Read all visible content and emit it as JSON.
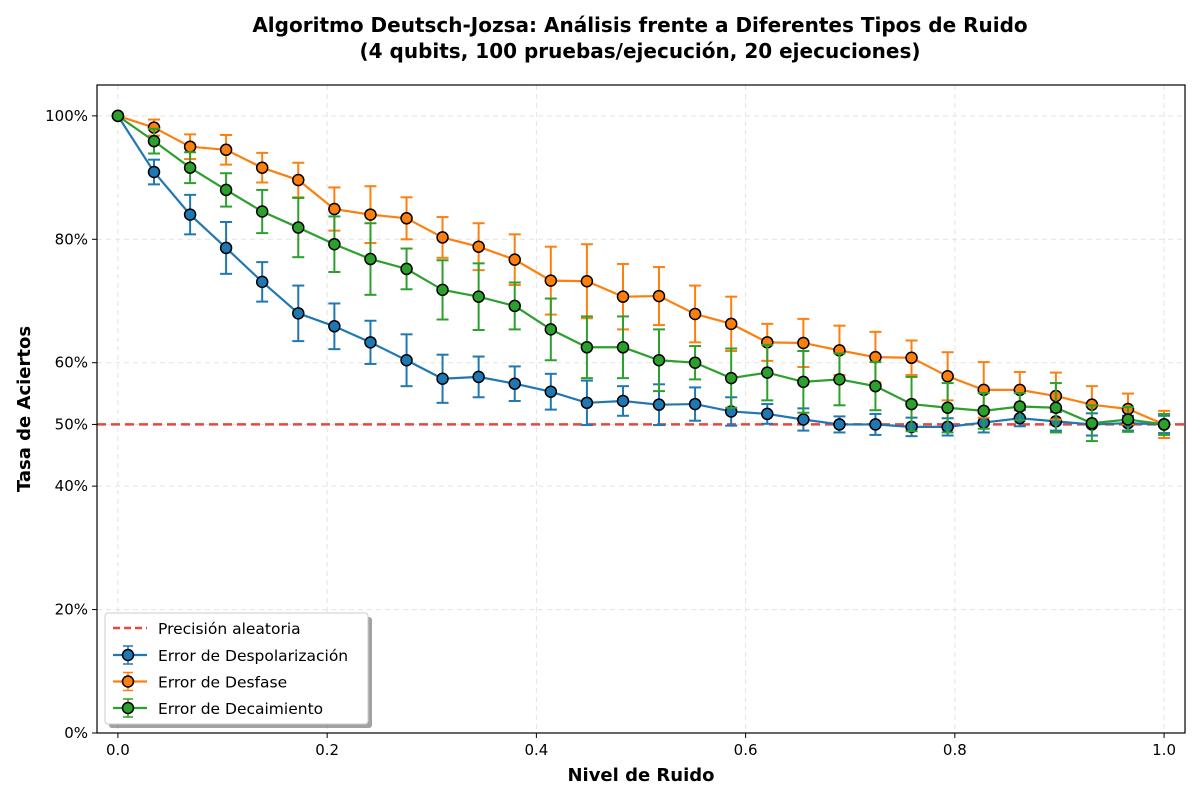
{
  "chart_data": {
    "type": "line",
    "title": "Algoritmo Deutsch-Jozsa: Análisis frente a Diferentes Tipos de Ruido",
    "subtitle": "(4 qubits, 100 pruebas/ejecución, 20 ejecuciones)",
    "xlabel": "Nivel de Ruido",
    "ylabel": "Tasa de Aciertos",
    "xlim": [
      -0.02,
      1.02
    ],
    "ylim": [
      0,
      1.05
    ],
    "x_ticks": [
      0.0,
      0.2,
      0.4,
      0.6,
      0.8,
      1.0
    ],
    "x_tick_labels": [
      "0.0",
      "0.2",
      "0.4",
      "0.6",
      "0.8",
      "1.0"
    ],
    "y_ticks": [
      0,
      0.2,
      0.4,
      0.5,
      0.6,
      0.8,
      1.0
    ],
    "y_tick_labels": [
      "0%",
      "20%",
      "40%",
      "50%",
      "60%",
      "80%",
      "100%"
    ],
    "grid": true,
    "legend_position": "lower-left",
    "reference_line": {
      "name": "Precisión aleatoria",
      "y": 0.5,
      "color": "#e8473f",
      "style": "dashed"
    },
    "x": [
      0.0,
      0.0345,
      0.069,
      0.1034,
      0.1379,
      0.1724,
      0.2069,
      0.2414,
      0.2759,
      0.3103,
      0.3448,
      0.3793,
      0.4138,
      0.4483,
      0.4828,
      0.5172,
      0.5517,
      0.5862,
      0.6207,
      0.6552,
      0.6897,
      0.7241,
      0.7586,
      0.7931,
      0.8276,
      0.8621,
      0.8966,
      0.931,
      0.9655,
      1.0
    ],
    "series": [
      {
        "name": "Error de Despolarización",
        "color": "#1f77b4",
        "values": [
          1.0,
          0.909,
          0.84,
          0.786,
          0.731,
          0.68,
          0.659,
          0.633,
          0.604,
          0.574,
          0.577,
          0.566,
          0.553,
          0.535,
          0.538,
          0.532,
          0.533,
          0.521,
          0.517,
          0.508,
          0.5,
          0.5,
          0.496,
          0.496,
          0.503,
          0.51,
          0.505,
          0.5,
          0.502,
          0.5
        ],
        "errors": [
          0.0,
          0.02,
          0.032,
          0.042,
          0.032,
          0.045,
          0.037,
          0.035,
          0.042,
          0.039,
          0.033,
          0.028,
          0.029,
          0.036,
          0.024,
          0.033,
          0.027,
          0.023,
          0.016,
          0.018,
          0.013,
          0.017,
          0.015,
          0.014,
          0.016,
          0.013,
          0.015,
          0.018,
          0.012,
          0.014
        ]
      },
      {
        "name": "Error de Desfase",
        "color": "#ff7f0e",
        "values": [
          1.0,
          0.981,
          0.95,
          0.945,
          0.916,
          0.896,
          0.849,
          0.84,
          0.834,
          0.803,
          0.788,
          0.767,
          0.733,
          0.732,
          0.707,
          0.708,
          0.679,
          0.663,
          0.633,
          0.632,
          0.62,
          0.609,
          0.608,
          0.578,
          0.556,
          0.556,
          0.546,
          0.532,
          0.525,
          0.5
        ],
        "errors": [
          0.0,
          0.013,
          0.02,
          0.024,
          0.024,
          0.028,
          0.035,
          0.046,
          0.034,
          0.033,
          0.038,
          0.041,
          0.055,
          0.06,
          0.053,
          0.047,
          0.046,
          0.044,
          0.03,
          0.039,
          0.04,
          0.041,
          0.028,
          0.039,
          0.045,
          0.029,
          0.038,
          0.03,
          0.025,
          0.022
        ]
      },
      {
        "name": "Error de Decaimiento",
        "color": "#2ca02c",
        "values": [
          1.0,
          0.959,
          0.916,
          0.88,
          0.845,
          0.819,
          0.792,
          0.768,
          0.752,
          0.718,
          0.707,
          0.692,
          0.654,
          0.625,
          0.625,
          0.604,
          0.6,
          0.575,
          0.584,
          0.569,
          0.573,
          0.562,
          0.533,
          0.527,
          0.522,
          0.529,
          0.527,
          0.502,
          0.508,
          0.5
        ],
        "errors": [
          0.0,
          0.02,
          0.025,
          0.027,
          0.035,
          0.048,
          0.045,
          0.058,
          0.033,
          0.048,
          0.054,
          0.038,
          0.05,
          0.05,
          0.05,
          0.05,
          0.027,
          0.048,
          0.045,
          0.05,
          0.042,
          0.039,
          0.044,
          0.04,
          0.029,
          0.022,
          0.04,
          0.029,
          0.02,
          0.017
        ]
      }
    ]
  }
}
